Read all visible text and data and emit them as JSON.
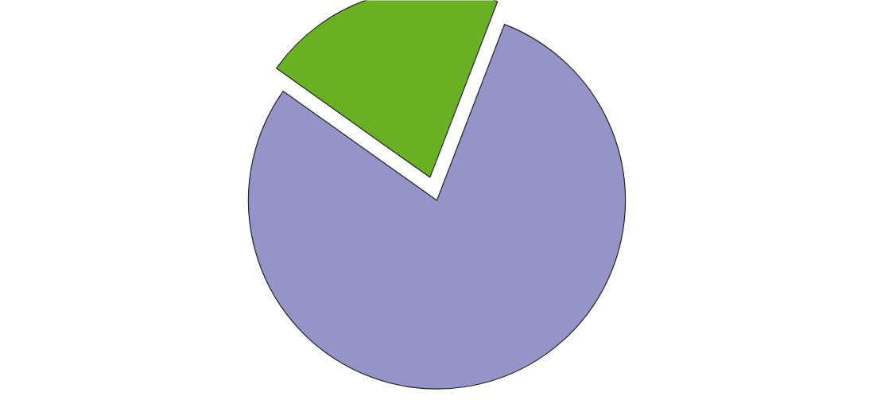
{
  "chart_data": {
    "type": "pie",
    "categories": [
      null,
      null
    ],
    "values": [
      21,
      79
    ],
    "colors": [
      "#6ab023",
      "#9594c8"
    ]
  }
}
